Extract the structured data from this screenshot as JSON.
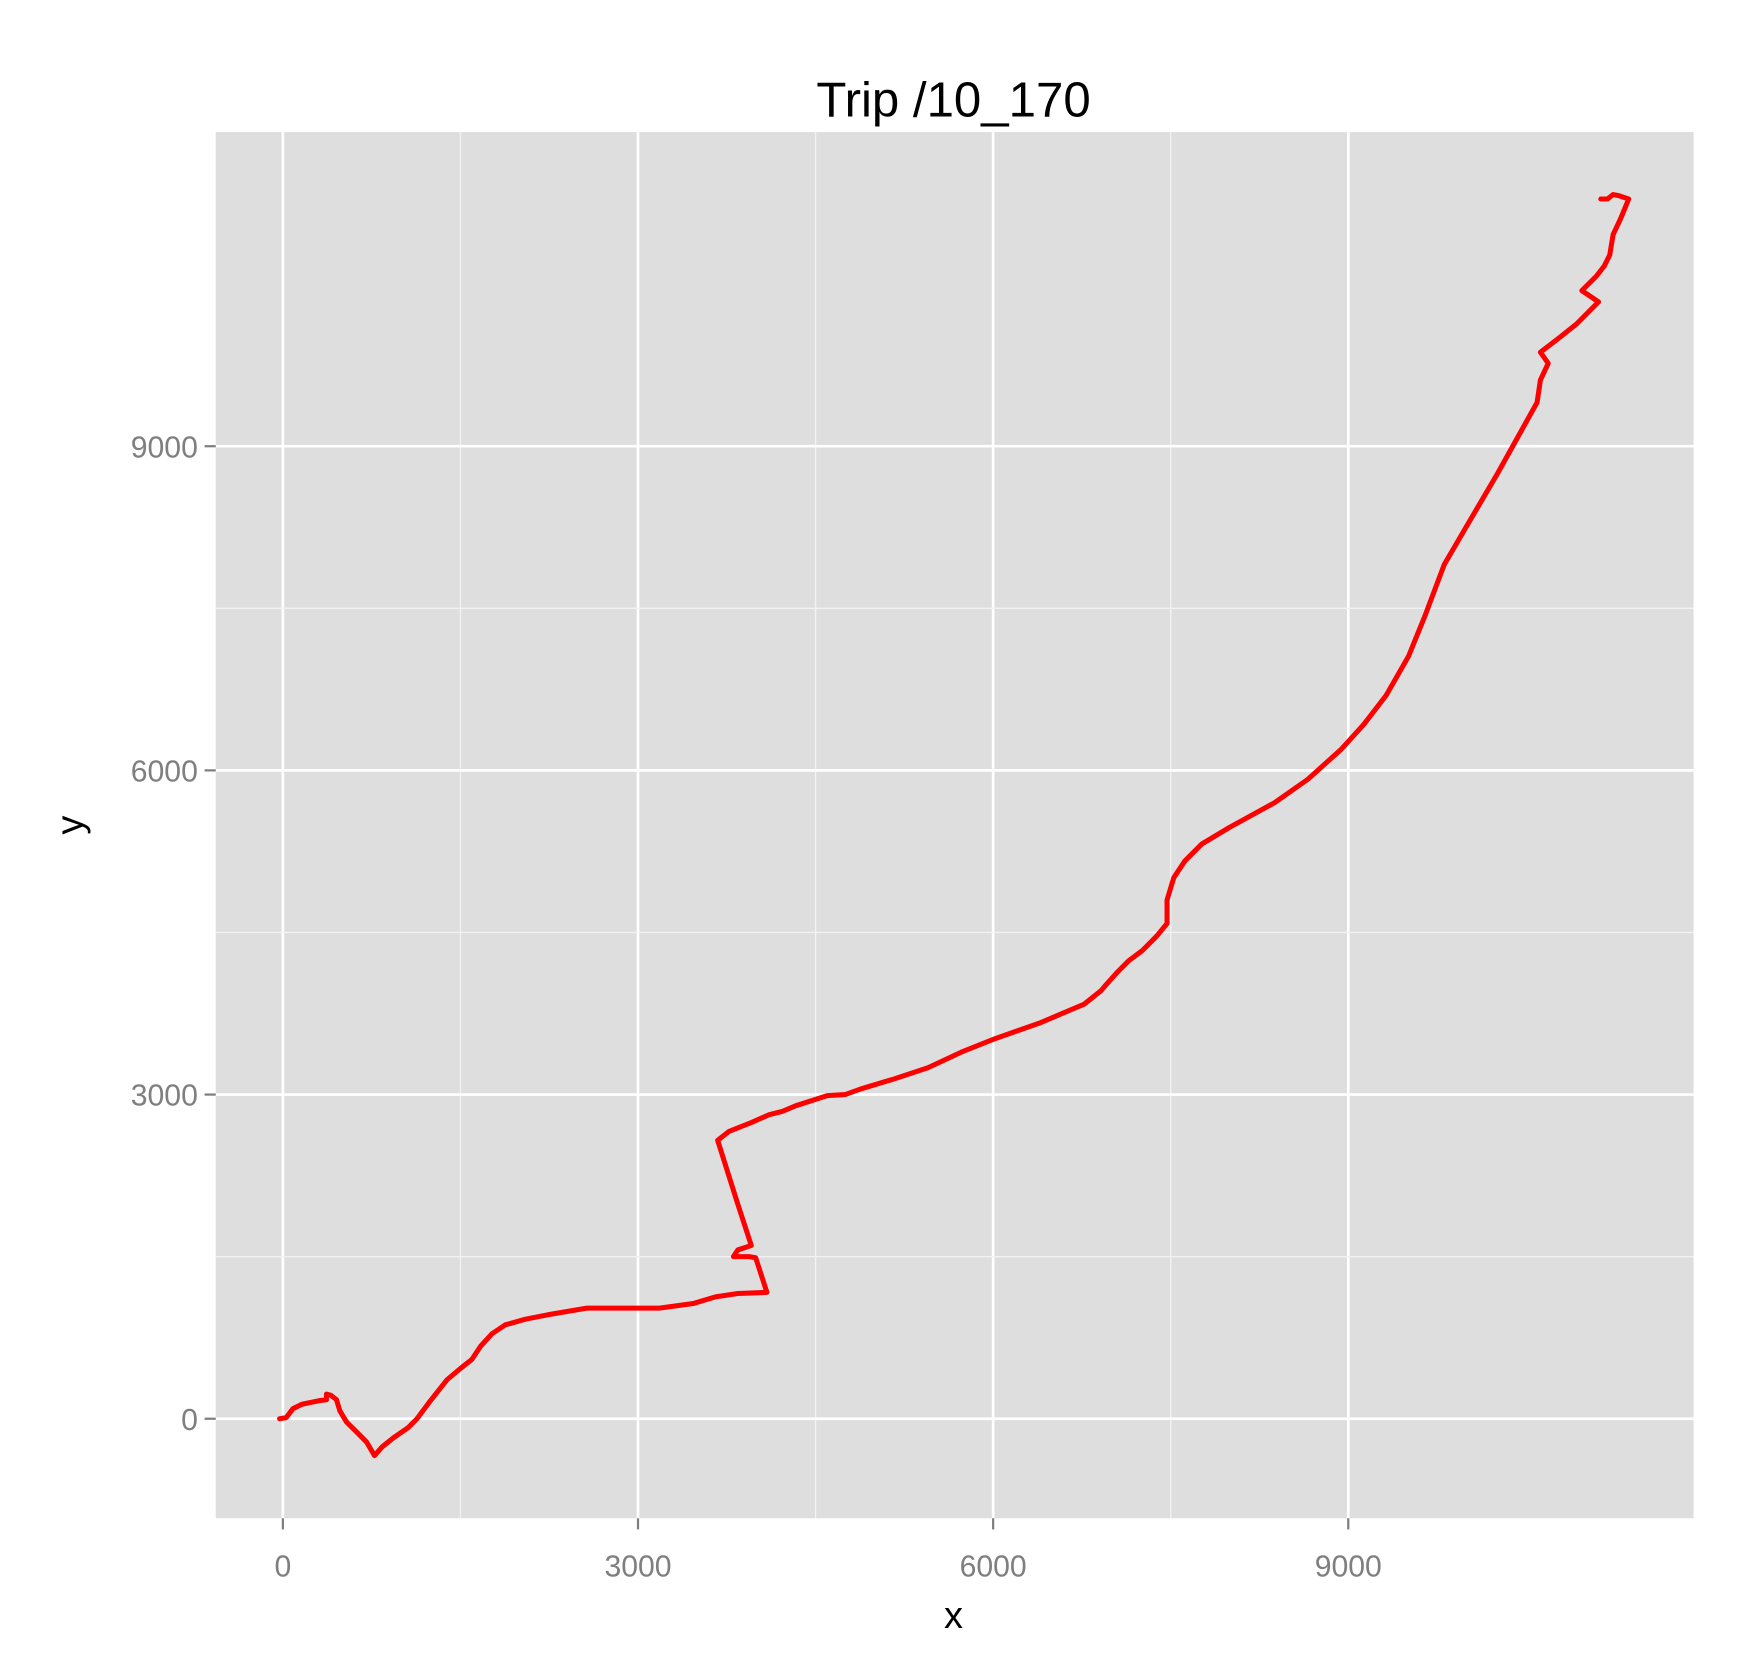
{
  "chart_data": {
    "type": "line",
    "title": "Trip /10_170",
    "xlabel": "x",
    "ylabel": "y",
    "x": [
      -28,
      28,
      85,
      161,
      302,
      368,
      368,
      406,
      453,
      482,
      538,
      633,
      708,
      774,
      840,
      935,
      1058,
      1133,
      1246,
      1388,
      1501,
      1596,
      1671,
      1766,
      1879,
      2049,
      2238,
      2568,
      3182,
      3466,
      3654,
      3843,
      4089,
      3994,
      3938,
      3806,
      3843,
      3957,
      3843,
      3673,
      3768,
      3957,
      4108,
      4221,
      4334,
      4599,
      4750,
      4882,
      5165,
      5449,
      5732,
      6015,
      6393,
      6771,
      6912,
      6960,
      7054,
      7148,
      7262,
      7384,
      7469,
      7469,
      7526,
      7620,
      7762,
      7998,
      8376,
      8659,
      8942,
      9131,
      9320,
      9509,
      9651,
      9811,
      9981,
      10264,
      10595,
      10623,
      10689,
      10623,
      10784,
      10926,
      11114,
      10973,
      11096,
      11162,
      11209,
      11237,
      11303,
      11369,
      11284,
      11237,
      11190,
      11133
    ],
    "series": [
      {
        "name": "trip",
        "color": "#ff0000",
        "values": [
          0,
          10,
          93,
          134,
          166,
          176,
          228,
          217,
          176,
          72,
          -31,
          -134,
          -217,
          -341,
          -259,
          -176,
          -83,
          0,
          166,
          362,
          466,
          548,
          672,
          786,
          869,
          921,
          962,
          1024,
          1024,
          1066,
          1128,
          1159,
          1169,
          1490,
          1500,
          1500,
          1562,
          1603,
          1986,
          2576,
          2659,
          2741,
          2814,
          2845,
          2897,
          2990,
          3000,
          3052,
          3145,
          3248,
          3393,
          3517,
          3662,
          3838,
          3962,
          4024,
          4138,
          4241,
          4334,
          4469,
          4583,
          4800,
          5007,
          5162,
          5318,
          5473,
          5700,
          5918,
          6197,
          6425,
          6694,
          7056,
          7439,
          7905,
          8225,
          8753,
          9405,
          9612,
          9767,
          9870,
          10005,
          10129,
          10336,
          10440,
          10574,
          10667,
          10771,
          10957,
          11112,
          11288,
          11319,
          11329,
          11288,
          11288
        ]
      }
    ],
    "xlim": [
      -567,
      11917
    ],
    "ylim": [
      -921,
      11907
    ],
    "xticks": [
      0,
      3000,
      6000,
      9000
    ],
    "yticks": [
      0,
      3000,
      6000,
      9000
    ],
    "grid": true,
    "legend": false
  }
}
